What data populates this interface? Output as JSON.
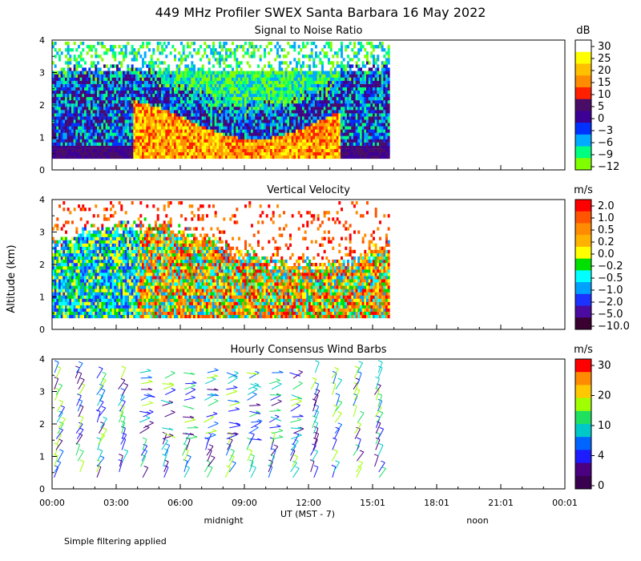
{
  "chart_data": {
    "type": "heatmap",
    "title": "449 MHz Profiler SWEX Santa Barbara 16 May 2022",
    "ylabel": "Altitude (km)",
    "xlabel": "UT  (MST - 7)",
    "x_ticks": [
      "00:00",
      "03:00",
      "06:00",
      "09:00",
      "12:00",
      "15:01",
      "18:01",
      "21:01",
      "00:01"
    ],
    "x_range_hours": [
      0,
      24
    ],
    "data_end_hour": 15.7,
    "local_markers": [
      "midnight",
      "noon"
    ],
    "footnote": "Simple filtering applied",
    "panels": [
      {
        "title": "Signal to Noise Ratio",
        "type": "heatmap",
        "unit": "dB",
        "ylim": [
          0,
          4
        ],
        "y_ticks": [
          "0",
          "1",
          "2",
          "3",
          "4"
        ],
        "colorbar_labels": [
          "30",
          "25",
          "20",
          "15",
          "10",
          "5",
          "0",
          "−3",
          "−6",
          "−9",
          "−12"
        ],
        "colorbar_colors": [
          "#ffffff",
          "#ffff00",
          "#ffc000",
          "#ff8c00",
          "#ff2000",
          "#4a0d67",
          "#3c0096",
          "#0032ff",
          "#00aaff",
          "#00ff7f",
          "#80ff00"
        ]
      },
      {
        "title": "Vertical Velocity",
        "type": "heatmap",
        "unit": "m/s",
        "ylim": [
          0,
          4
        ],
        "y_ticks": [
          "0",
          "1",
          "2",
          "3",
          "4"
        ],
        "colorbar_labels": [
          "2.0",
          "1.0",
          "0.5",
          "0.2",
          "0.0",
          "−0.2",
          "−0.5",
          "−1.0",
          "−2.0",
          "−5.0",
          "−10.0"
        ],
        "colorbar_colors": [
          "#ff0000",
          "#ff5500",
          "#ff8c00",
          "#ffb300",
          "#ffff00",
          "#00e000",
          "#00ffff",
          "#00a0ff",
          "#1c32ff",
          "#4b0aa0",
          "#3a0030"
        ]
      },
      {
        "title": "Hourly Consensus Wind Barbs",
        "type": "wind_barbs",
        "unit": "m/s",
        "ylim": [
          0,
          4
        ],
        "y_ticks": [
          "0",
          "1",
          "2",
          "3",
          "4"
        ],
        "colorbar_labels": [
          "30",
          "20",
          "10",
          "4",
          "0"
        ],
        "colorbar_colors": [
          "#ff0000",
          "#ff8c00",
          "#ffc800",
          "#a0ff00",
          "#20e060",
          "#00c8c8",
          "#0064ff",
          "#1c1cff",
          "#4a0080",
          "#3a0050"
        ]
      }
    ]
  }
}
